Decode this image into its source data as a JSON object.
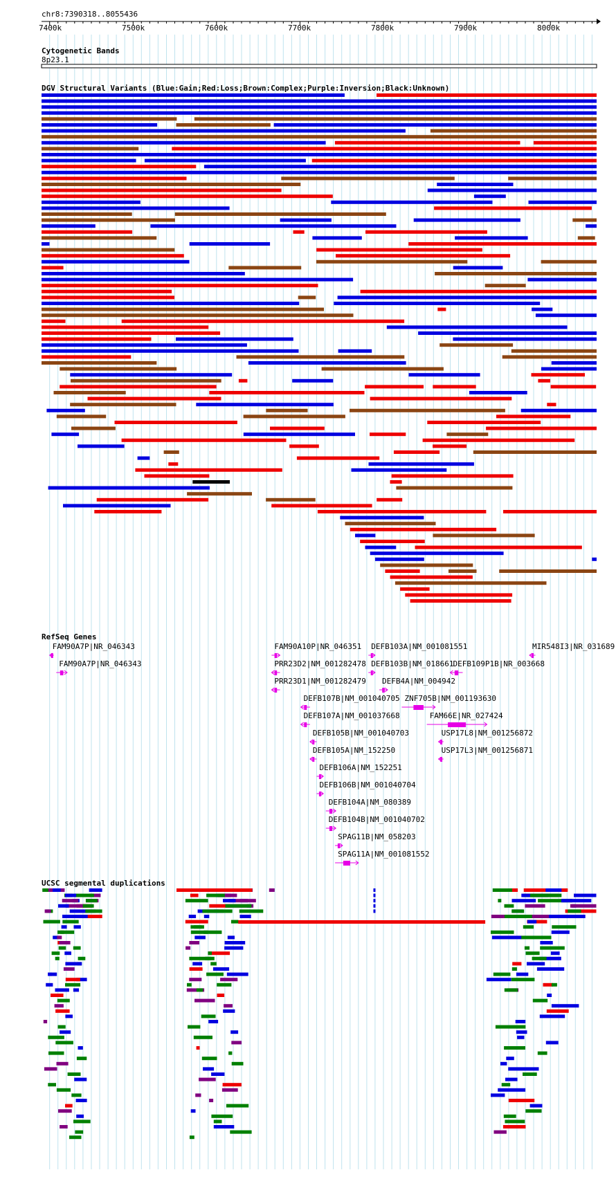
{
  "region": {
    "label": "chr8:7390318..8055436",
    "start": 7390318,
    "end": 8055436,
    "ticks": [
      "7400k",
      "7500k",
      "7600k",
      "7700k",
      "7800k",
      "7900k",
      "8000k"
    ]
  },
  "tracks": {
    "cytoband": {
      "title": "Cytogenetic Bands",
      "band": "8p23.1"
    },
    "dgv": {
      "title": "DGV Structural Variants (Blue:Gain;Red:Loss;Brown:Complex;Purple:Inversion;Black:Unknown)",
      "colors": {
        "gain": "#0000e0",
        "loss": "#ee0000",
        "complex": "#8b4513",
        "inversion": "#800080",
        "unknown": "#000000"
      }
    },
    "refseq": {
      "title": "RefSeq Genes",
      "color": "#e600e6",
      "genes": [
        {
          "label": "FAM90A7P|NR_046343",
          "start": 7400,
          "end": 7405,
          "strand": "-"
        },
        {
          "label": "FAM90A7P|NR_046343",
          "start": 7408,
          "end": 7421,
          "strand": "+"
        },
        {
          "label": "FAM90A10P|NR_046351",
          "start": 7666,
          "end": 7676,
          "strand": "+"
        },
        {
          "label": "PRR23D2|NM_001282478",
          "start": 7666,
          "end": 7676,
          "strand": "-"
        },
        {
          "label": "PRR23D1|NM_001282479",
          "start": 7666,
          "end": 7676,
          "strand": "-"
        },
        {
          "label": "DEFB107B|NM_001040705",
          "start": 7701,
          "end": 7712,
          "strand": "-"
        },
        {
          "label": "DEFB107A|NM_001037668",
          "start": 7701,
          "end": 7712,
          "strand": "-"
        },
        {
          "label": "DEFB105B|NM_001040703",
          "start": 7712,
          "end": 7720,
          "strand": "-"
        },
        {
          "label": "DEFB105A|NM_152250",
          "start": 7712,
          "end": 7720,
          "strand": "-"
        },
        {
          "label": "DEFB106A|NM_152251",
          "start": 7720,
          "end": 7728,
          "strand": "+"
        },
        {
          "label": "DEFB106B|NM_001040704",
          "start": 7720,
          "end": 7728,
          "strand": "+"
        },
        {
          "label": "DEFB104A|NM_080389",
          "start": 7731,
          "end": 7743,
          "strand": "+"
        },
        {
          "label": "DEFB104B|NM_001040702",
          "start": 7731,
          "end": 7743,
          "strand": "+"
        },
        {
          "label": "SPAG11B|NM_058203",
          "start": 7742,
          "end": 7751,
          "strand": "+"
        },
        {
          "label": "SPAG11A|NM_001081552",
          "start": 7742,
          "end": 7770,
          "strand": "+"
        },
        {
          "label": "DEFB103A|NM_001081551",
          "start": 7782,
          "end": 7790,
          "strand": "+"
        },
        {
          "label": "DEFB103B|NM_018661",
          "start": 7782,
          "end": 7790,
          "strand": "+"
        },
        {
          "label": "DEFB4A|NM_004942",
          "start": 7795,
          "end": 7805,
          "strand": "+"
        },
        {
          "label": "ZNF705B|NM_001193630",
          "start": 7822,
          "end": 7862,
          "strand": "+"
        },
        {
          "label": "FAM66E|NR_027424",
          "start": 7852,
          "end": 7924,
          "strand": "+"
        },
        {
          "label": "USP17L8|NM_001256872",
          "start": 7866,
          "end": 7872,
          "strand": "-"
        },
        {
          "label": "USP17L3|NM_001256871",
          "start": 7866,
          "end": 7872,
          "strand": "-"
        },
        {
          "label": "DEFB109P1B|NR_003668",
          "start": 7880,
          "end": 7895,
          "strand": "-"
        },
        {
          "label": "MIR548I3|NR_031689",
          "start": 7975,
          "end": 7982,
          "strand": "-"
        }
      ]
    },
    "segdups": {
      "title": "UCSC segmental duplications",
      "colors": {
        "high": "#008000",
        "mid": "#0000e0",
        "low": "#ee0000",
        "other": "#800080"
      }
    }
  }
}
